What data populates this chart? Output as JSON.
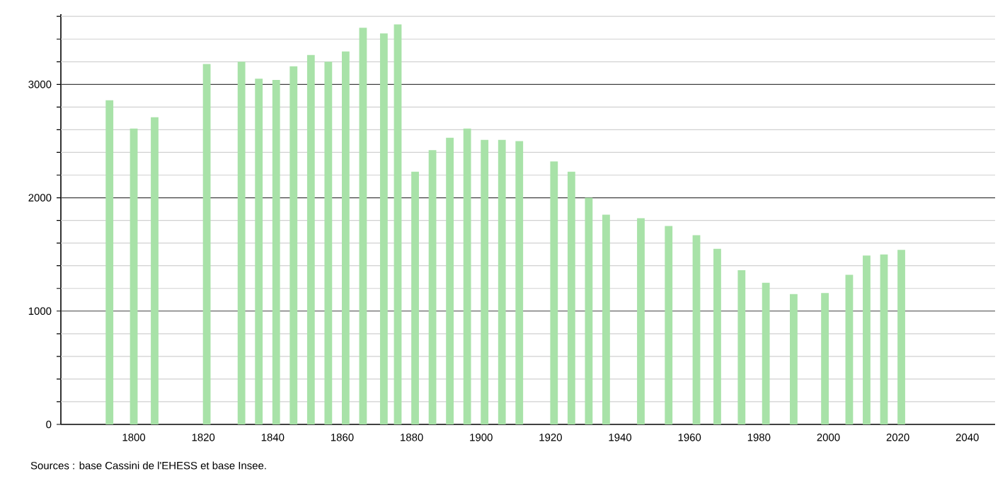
{
  "chart_data": {
    "type": "bar",
    "color": "#a8e2a8",
    "x": [
      1793,
      1800,
      1806,
      1821,
      1831,
      1836,
      1841,
      1846,
      1851,
      1856,
      1861,
      1866,
      1872,
      1876,
      1881,
      1886,
      1891,
      1896,
      1901,
      1906,
      1911,
      1921,
      1926,
      1931,
      1936,
      1946,
      1954,
      1962,
      1968,
      1975,
      1982,
      1990,
      1999,
      2006,
      2011,
      2016,
      2021
    ],
    "values": [
      2860,
      2610,
      2710,
      3180,
      3200,
      3050,
      3040,
      3160,
      3260,
      3200,
      3290,
      3500,
      3450,
      3530,
      2230,
      2420,
      2530,
      2610,
      2510,
      2510,
      2500,
      2320,
      2230,
      2000,
      1850,
      1820,
      1750,
      1670,
      1550,
      1360,
      1250,
      1150,
      1160,
      1320,
      1490,
      1500,
      1540
    ],
    "xlim": [
      1779,
      2048
    ],
    "xticks": [
      1800,
      1820,
      1840,
      1860,
      1880,
      1900,
      1920,
      1940,
      1960,
      1980,
      2000,
      2020,
      2040
    ],
    "ylim": [
      0,
      3620
    ],
    "yticks": [
      0,
      {
        "value": 200,
        "label": null
      },
      {
        "value": 400,
        "label": null
      },
      {
        "value": 600,
        "label": null
      },
      {
        "value": 800,
        "label": null
      },
      1000,
      {
        "value": 1200,
        "label": null
      },
      {
        "value": 1400,
        "label": null
      },
      {
        "value": 1600,
        "label": null
      },
      {
        "value": 1800,
        "label": null
      },
      2000,
      {
        "value": 2200,
        "label": null
      },
      {
        "value": 2400,
        "label": null
      },
      {
        "value": 2600,
        "label": null
      },
      {
        "value": 2800,
        "label": null
      },
      3000,
      {
        "value": 3200,
        "label": null
      },
      {
        "value": 3400,
        "label": null
      },
      {
        "value": 3600,
        "label": null
      }
    ],
    "grid": "y",
    "annotations": [
      "Sources : base Cassini de l'EHESS et base Insee."
    ]
  }
}
